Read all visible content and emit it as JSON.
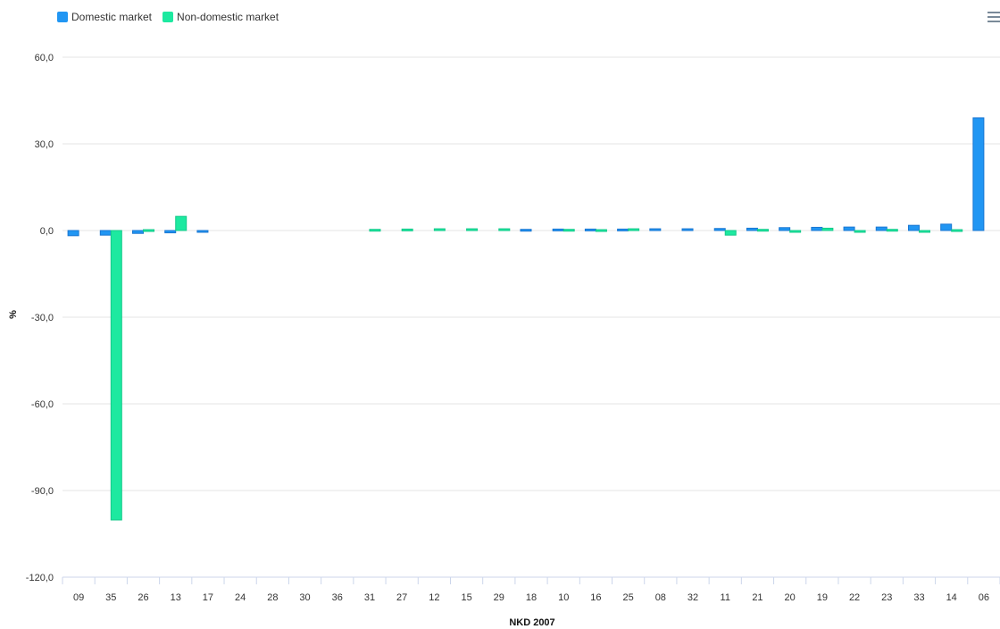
{
  "legend": {
    "domestic": "Domestic market",
    "nondomestic": "Non-domestic market"
  },
  "colors": {
    "domestic": "#2196f3",
    "nondomestic": "#1de9a0",
    "grid": "#e6e6e6"
  },
  "icons": {
    "menu": "hamburger-menu-icon"
  },
  "chart_data": {
    "type": "bar",
    "categories": [
      "09",
      "35",
      "26",
      "13",
      "17",
      "24",
      "28",
      "30",
      "36",
      "31",
      "27",
      "12",
      "15",
      "29",
      "18",
      "10",
      "16",
      "25",
      "08",
      "32",
      "11",
      "21",
      "20",
      "19",
      "22",
      "23",
      "33",
      "14",
      "06"
    ],
    "series": [
      {
        "name": "Domestic market",
        "values": [
          -1.8,
          -1.6,
          -1.0,
          -0.8,
          -0.5,
          0,
          0,
          0,
          0,
          0,
          0,
          0,
          0,
          0,
          0.4,
          0.5,
          0.5,
          0.5,
          0.6,
          0.6,
          0.7,
          0.8,
          1.0,
          1.1,
          1.2,
          1.2,
          1.8,
          2.2,
          39.0
        ]
      },
      {
        "name": "Non-domestic market",
        "values": [
          0,
          -100.2,
          0.3,
          4.9,
          0,
          0,
          0,
          0,
          0,
          0.4,
          0.5,
          0.6,
          0.6,
          0.6,
          0,
          0.4,
          0.3,
          0.6,
          0,
          0,
          -1.6,
          0.4,
          -0.6,
          0.8,
          -0.5,
          0.4,
          -0.3,
          0.3,
          0
        ]
      }
    ],
    "yticks": [
      "60,0",
      "30,0",
      "0,0",
      "-30,0",
      "-60,0",
      "-90,0",
      "-120,0"
    ],
    "ytick_values": [
      60,
      30,
      0,
      -30,
      -60,
      -90,
      -120
    ],
    "ylim": [
      -120,
      60
    ],
    "xlabel": "NKD 2007",
    "ylabel": "%",
    "grid": true,
    "legend_position": "top-left"
  }
}
